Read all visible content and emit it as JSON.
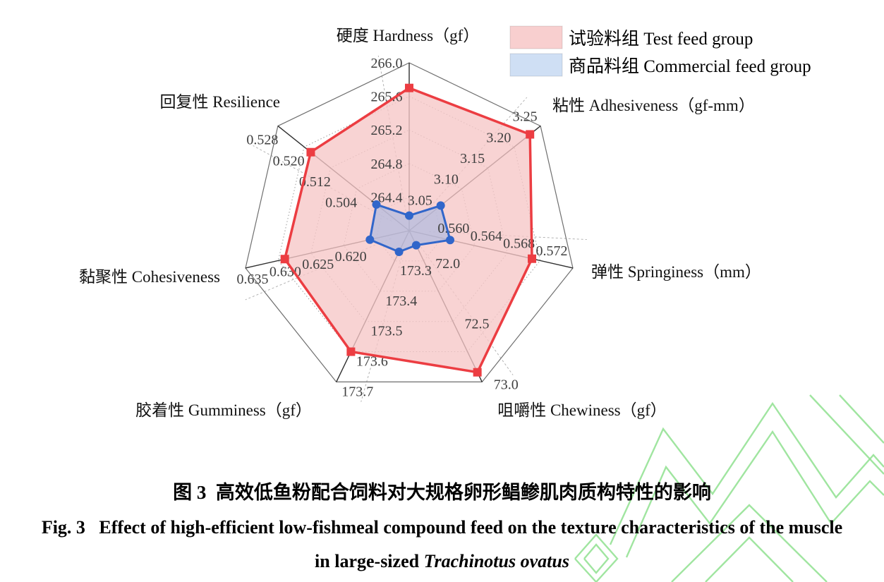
{
  "figure": {
    "legend": [
      {
        "label": "试验料组 Test feed group",
        "swatch_fill": "#f8cfcf",
        "line_color": "#ec3d42"
      },
      {
        "label": "商品料组 Commercial feed group",
        "swatch_fill": "#cfdff4",
        "line_color": "#3166ca"
      }
    ],
    "caption": {
      "zh": "图 3  高效低鱼粉配合饲料对大规格卵形鲳鲹肌肉质构特性的影响",
      "en_line1": "Fig. 3   Effect of high-efficient low-fishmeal compound feed on the texture characteristics of the muscle",
      "en_line2_prefix": "in large-sized ",
      "en_line2_italic": "Trachinotus ovatus"
    },
    "watermark_color": "#8fe08f"
  },
  "chart_data": {
    "type": "radar",
    "rings": 5,
    "grid": "dotted-polygons",
    "axes": [
      {
        "id": "hardness",
        "title": "硬度 Hardness（gf）",
        "min": 264.0,
        "step": 0.4,
        "ticks": [
          {
            "ring": 1,
            "label": "264.4"
          },
          {
            "ring": 2,
            "label": "264.8"
          },
          {
            "ring": 3,
            "label": "265.2"
          },
          {
            "ring": 4,
            "label": "265.6"
          },
          {
            "ring": 5,
            "label": "266.0"
          }
        ]
      },
      {
        "id": "adhesiveness",
        "title": "粘性 Adhesiveness（gf-mm）",
        "min": 3.0,
        "step": 0.05,
        "ticks": [
          {
            "ring": 1,
            "label": "3.05"
          },
          {
            "ring": 2,
            "label": "3.10"
          },
          {
            "ring": 3,
            "label": "3.15"
          },
          {
            "ring": 4,
            "label": "3.20"
          },
          {
            "ring": 5,
            "label": "3.25"
          }
        ]
      },
      {
        "id": "springiness",
        "title": "弹性 Springiness（mm）",
        "min": 0.552,
        "step": 0.004,
        "ticks": [
          {
            "ring": 2,
            "label": "0.560"
          },
          {
            "ring": 3,
            "label": "0.564"
          },
          {
            "ring": 4,
            "label": "0.568"
          },
          {
            "ring": 5,
            "label": "0.572"
          }
        ]
      },
      {
        "id": "chewiness",
        "title": "咀嚼性 Chewiness（gf）",
        "min": 71.75,
        "step": 0.25,
        "ticks": [
          {
            "ring": 1,
            "label": "72.0"
          },
          {
            "ring": 3,
            "label": "72.5"
          },
          {
            "ring": 5,
            "label": "73.0"
          }
        ]
      },
      {
        "id": "gumminess",
        "title": "胶着性 Gumminess（gf）",
        "min": 173.2,
        "step": 0.1,
        "ticks": [
          {
            "ring": 1,
            "label": "173.3"
          },
          {
            "ring": 2,
            "label": "173.4"
          },
          {
            "ring": 3,
            "label": "173.5"
          },
          {
            "ring": 4,
            "label": "173.6"
          },
          {
            "ring": 5,
            "label": "173.7"
          }
        ]
      },
      {
        "id": "cohesiveness",
        "title": "黏聚性 Cohesiveness",
        "min": 0.61,
        "step": 0.005,
        "ticks": [
          {
            "ring": 2,
            "label": "0.620"
          },
          {
            "ring": 3,
            "label": "0.625"
          },
          {
            "ring": 4,
            "label": "0.630"
          },
          {
            "ring": 5,
            "label": "0.635"
          }
        ]
      },
      {
        "id": "resilience",
        "title": "回复性 Resilience",
        "min": 0.488,
        "step": 0.008,
        "ticks": [
          {
            "ring": 2,
            "label": "0.504"
          },
          {
            "ring": 3,
            "label": "0.512"
          },
          {
            "ring": 4,
            "label": "0.520"
          },
          {
            "ring": 5,
            "label": "0.528"
          }
        ]
      }
    ],
    "series": [
      {
        "name": "试验料组 Test feed group",
        "marker": "square",
        "color": "#ec3d42",
        "area_fill": "rgba(246,198,198,0.78)",
        "values": [
          265.7,
          3.23,
          0.567,
          72.92,
          173.6,
          0.629,
          0.518
        ]
      },
      {
        "name": "商品料组 Commercial feed group",
        "marker": "circle",
        "color": "#3166ca",
        "area_fill": "rgba(164,184,226,0.60)",
        "values": [
          264.18,
          3.06,
          0.557,
          71.87,
          173.27,
          0.616,
          0.498
        ]
      }
    ],
    "legend_position": "top-right"
  }
}
